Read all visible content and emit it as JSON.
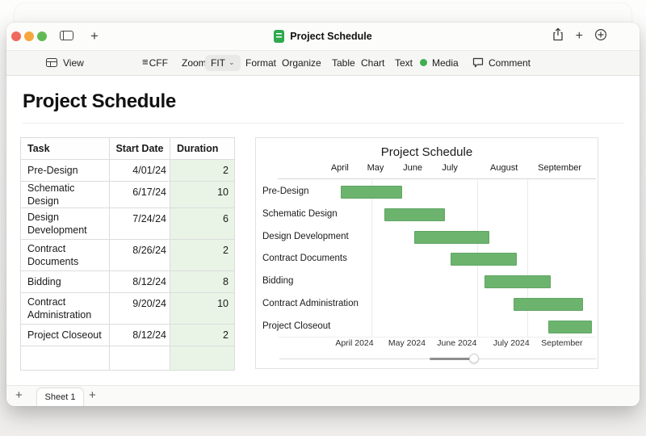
{
  "titlebar": {
    "title": "Project Schedule",
    "traffic_colors": [
      "#ee6a5e",
      "#f5a73f",
      "#62ba55"
    ]
  },
  "toolbar": {
    "items": [
      {
        "name": "view",
        "label": "View",
        "icon": "panel-icon"
      },
      {
        "name": "cff",
        "label": "CFF",
        "icon": "lines-icon"
      },
      {
        "name": "zoom",
        "label": "Zoom"
      },
      {
        "name": "fit",
        "label": "FIT",
        "chip": true,
        "chevron": "⌄"
      },
      {
        "name": "format",
        "label": "Format"
      },
      {
        "name": "organize",
        "label": "Organize"
      },
      {
        "name": "table",
        "label": "Table"
      },
      {
        "name": "chart",
        "label": "Chart"
      },
      {
        "name": "text",
        "label": "Text"
      },
      {
        "name": "media",
        "label": "Media",
        "icon": "media-dot-icon"
      },
      {
        "name": "comment",
        "label": "Comment",
        "icon": "comment-bubble-icon"
      }
    ]
  },
  "canvas": {
    "heading": "Project Schedule"
  },
  "table": {
    "headers": [
      "Task",
      "Start Date",
      "Duration"
    ],
    "duration_fill": "#e9f4e6",
    "rows": [
      {
        "task": "Pre-Design",
        "start": "4/01/24",
        "duration": "2"
      },
      {
        "task": "Schematic Design",
        "start": "6/17/24",
        "duration": "10"
      },
      {
        "task": "Design\nDevelopment",
        "start": "7/24/24",
        "duration": "6"
      },
      {
        "task": "Contract\nDocuments",
        "start": "8/26/24",
        "duration": "2"
      },
      {
        "task": "Bidding",
        "start": "8/12/24",
        "duration": "8"
      },
      {
        "task": "Contract\nAdministration",
        "start": "9/20/24",
        "duration": "10"
      },
      {
        "task": "Project Closeout",
        "start": "8/12/24",
        "duration": "2"
      }
    ],
    "has_trailing_empty_row": true
  },
  "chart_data": {
    "type": "bar",
    "subtype": "gantt-horizontal",
    "title": "Project Schedule",
    "bar_color": "#6cb46e",
    "grid": true,
    "top_axis": [
      {
        "label": "April",
        "center_pct": 19.5
      },
      {
        "label": "May",
        "center_pct": 30.7
      },
      {
        "label": "June",
        "center_pct": 42.4
      },
      {
        "label": "July",
        "center_pct": 54.1
      },
      {
        "label": "August",
        "center_pct": 71.1
      },
      {
        "label": "September",
        "center_pct": 88.6
      }
    ],
    "gridlines_pct": [
      29.4,
      62.7,
      78.4
    ],
    "tasks": [
      {
        "name": "Pre-Design",
        "start_date": "4/01/24",
        "duration": 2,
        "bar_left_pct": 19.8,
        "bar_width_pct": 19.3
      },
      {
        "name": "Schematic Design",
        "start_date": "6/17/24",
        "duration": 10,
        "bar_left_pct": 33.5,
        "bar_width_pct": 19.0
      },
      {
        "name": "Design Development",
        "start_date": "7/24/24",
        "duration": 6,
        "bar_left_pct": 42.9,
        "bar_width_pct": 23.6
      },
      {
        "name": "Contract Documents",
        "start_date": "8/26/24",
        "duration": 2,
        "bar_left_pct": 54.3,
        "bar_width_pct": 20.8
      },
      {
        "name": "Bidding",
        "start_date": "8/12/24",
        "duration": 8,
        "bar_left_pct": 65.0,
        "bar_width_pct": 20.8
      },
      {
        "name": "Contract Administration",
        "start_date": "9/20/24",
        "duration": 10,
        "bar_left_pct": 74.1,
        "bar_width_pct": 21.8
      },
      {
        "name": "Project Closeout",
        "start_date": "8/12/24",
        "duration": 2,
        "bar_left_pct": 85.0,
        "bar_width_pct": 13.7
      }
    ],
    "bottom_axis": [
      {
        "label": "April 2024",
        "center_pct": 24.1
      },
      {
        "label": "May 2024",
        "center_pct": 40.6
      },
      {
        "label": "June 2024",
        "center_pct": 56.3
      },
      {
        "label": "July 2024",
        "center_pct": 73.4
      },
      {
        "label": "September",
        "center_pct": 89.3
      }
    ],
    "scrollbar": {
      "fill_left_pct": 47.5,
      "fill_width_pct": 13.5,
      "knob_pct": 61.5
    }
  },
  "sheetbar": {
    "add_sheet_label": "+",
    "tab": "Sheet 1",
    "add_tab_label": "+"
  }
}
